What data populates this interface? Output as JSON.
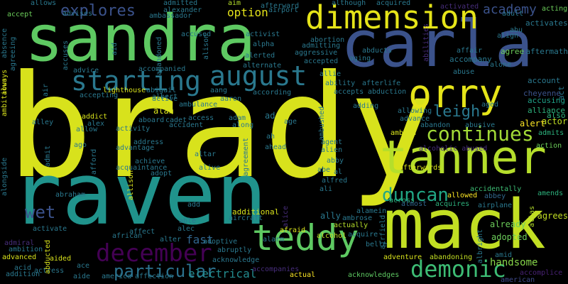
{
  "words": [
    {
      "text": "brady",
      "color": "#d8e21c"
    },
    {
      "text": "raven",
      "color": "#20938c"
    },
    {
      "text": "sandra",
      "color": "#5ec962"
    },
    {
      "text": "carla",
      "color": "#3b528b"
    },
    {
      "text": "mack",
      "color": "#c2df23"
    },
    {
      "text": "tanner",
      "color": "#b5de2b"
    },
    {
      "text": "dimension",
      "color": "#e5e419"
    },
    {
      "text": "orry",
      "color": "#e5e419"
    },
    {
      "text": "teddy",
      "color": "#5ec962"
    },
    {
      "text": "august",
      "color": "#2a788e"
    },
    {
      "text": "starting",
      "color": "#2a788e"
    },
    {
      "text": "continues",
      "color": "#a2da37"
    },
    {
      "text": "demonic",
      "color": "#3dbc74"
    },
    {
      "text": "december",
      "color": "#440154"
    },
    {
      "text": "duncan",
      "color": "#21a685"
    },
    {
      "text": "particular",
      "color": "#2c728e"
    },
    {
      "text": "explores",
      "color": "#3b528b"
    },
    {
      "text": "leigh",
      "color": "#2a788e"
    },
    {
      "text": "wet",
      "color": "#3b528b"
    },
    {
      "text": "academy",
      "color": "#3b528b"
    },
    {
      "text": "option",
      "color": "#e5e419"
    },
    {
      "text": "electrical",
      "color": "#238a8d"
    },
    {
      "text": "handsome",
      "color": "#86d549"
    },
    {
      "text": "fast",
      "color": "#31668e"
    },
    {
      "text": "afterwards",
      "color": "#d8e21c"
    },
    {
      "text": "ambush",
      "color": "#d8e21c"
    },
    {
      "text": "accidentally",
      "color": "#3dbc74"
    },
    {
      "text": "across",
      "color": "#2db27d"
    },
    {
      "text": "alcohol",
      "color": "#c2df23"
    },
    {
      "text": "allowed",
      "color": "#fde725"
    },
    {
      "text": "almost",
      "color": "#31668e"
    },
    {
      "text": "acquires",
      "color": "#2db27d"
    },
    {
      "text": "airplane",
      "color": "#2a788e"
    },
    {
      "text": "agrees",
      "color": "#c2df23"
    },
    {
      "text": "already",
      "color": "#6ccd5a"
    },
    {
      "text": "adopted",
      "color": "#6ccd5a"
    },
    {
      "text": "adventure",
      "color": "#d8e21c"
    },
    {
      "text": "abandoning",
      "color": "#c2df23"
    },
    {
      "text": "acknowledges",
      "color": "#5ec962"
    },
    {
      "text": "actual",
      "color": "#fde725"
    },
    {
      "text": "actually",
      "color": "#b5de2b"
    },
    {
      "text": "accompanies",
      "color": "#472d7b"
    },
    {
      "text": "accomplice",
      "color": "#482173"
    },
    {
      "text": "american",
      "color": "#3e4989"
    },
    {
      "text": "abrahm",
      "color": "#000000"
    },
    {
      "text": "actor",
      "color": "#c2df23"
    },
    {
      "text": "alert",
      "color": "#fde725"
    },
    {
      "text": "admits",
      "color": "#2db27d"
    },
    {
      "text": "action",
      "color": "#6ccd5a"
    },
    {
      "text": "abbey",
      "color": "#31688e"
    },
    {
      "text": "amends",
      "color": "#2db27d"
    },
    {
      "text": "alias",
      "color": "#b5de2b"
    },
    {
      "text": "alliance",
      "color": "#2db27d"
    },
    {
      "text": "also",
      "color": "#2db27d"
    },
    {
      "text": "accusing",
      "color": "#1fa188"
    },
    {
      "text": "cheyenne",
      "color": "#3b528b"
    },
    {
      "text": "act",
      "color": "#2a788e"
    },
    {
      "text": "account",
      "color": "#2a788e"
    },
    {
      "text": "abuse",
      "color": "#2a788e"
    },
    {
      "text": "alone",
      "color": "#2a788e"
    },
    {
      "text": "accompany",
      "color": "#2a788e"
    },
    {
      "text": "affair",
      "color": "#2a788e"
    },
    {
      "text": "agree",
      "color": "#6ccd5a"
    },
    {
      "text": "aftermath",
      "color": "#2a788e"
    },
    {
      "text": "align",
      "color": "#2a788e"
    },
    {
      "text": "abu",
      "color": "#2a788e"
    },
    {
      "text": "activates",
      "color": "#2a788e"
    },
    {
      "text": "adult",
      "color": "#2a788e"
    },
    {
      "text": "acting",
      "color": "#6ccd5a"
    },
    {
      "text": "activated",
      "color": "#472d7b"
    },
    {
      "text": "acquired",
      "color": "#2a788e"
    },
    {
      "text": "although",
      "color": "#2a788e"
    },
    {
      "text": "aim",
      "color": "#b5de2b"
    },
    {
      "text": "afterward",
      "color": "#2a788e"
    },
    {
      "text": "airport",
      "color": "#2a788e"
    },
    {
      "text": "admitted",
      "color": "#2a788e"
    },
    {
      "text": "ambassador",
      "color": "#2a788e"
    },
    {
      "text": "alexander",
      "color": "#2a788e"
    },
    {
      "text": "advises",
      "color": "#2a788e"
    },
    {
      "text": "allows",
      "color": "#2a788e"
    },
    {
      "text": "accept",
      "color": "#6ccd5a"
    },
    {
      "text": "activist",
      "color": "#2a788e"
    },
    {
      "text": "alpha",
      "color": "#2a788e"
    },
    {
      "text": "alerted",
      "color": "#2a788e"
    },
    {
      "text": "alternate",
      "color": "#2a788e"
    },
    {
      "text": "accused",
      "color": "#2a788e"
    },
    {
      "text": "abortion",
      "color": "#2a788e"
    },
    {
      "text": "admitting",
      "color": "#2a788e"
    },
    {
      "text": "aggressive",
      "color": "#2a788e"
    },
    {
      "text": "accepted",
      "color": "#2a788e"
    },
    {
      "text": "aging",
      "color": "#2a788e"
    },
    {
      "text": "abducts",
      "color": "#2a788e"
    },
    {
      "text": "allie",
      "color": "#2a788e"
    },
    {
      "text": "ability",
      "color": "#2a788e"
    },
    {
      "text": "afterlife",
      "color": "#2a788e"
    },
    {
      "text": "accepts",
      "color": "#2a788e"
    },
    {
      "text": "abduction",
      "color": "#2a788e"
    },
    {
      "text": "adding",
      "color": "#2a788e"
    },
    {
      "text": "aged",
      "color": "#2a788e"
    },
    {
      "text": "allowing",
      "color": "#2a788e"
    },
    {
      "text": "advance",
      "color": "#2a788e"
    },
    {
      "text": "abandon",
      "color": "#2a788e"
    },
    {
      "text": "abusive",
      "color": "#2a788e"
    },
    {
      "text": "alcoholic abused",
      "color": "#472d7b"
    },
    {
      "text": "advice",
      "color": "#2a788e"
    },
    {
      "text": "accompanied",
      "color": "#2a788e"
    },
    {
      "text": "abigail",
      "color": "#2a788e"
    },
    {
      "text": "accepting",
      "color": "#2a788e"
    },
    {
      "text": "lighthouse",
      "color": "#d8e21c"
    },
    {
      "text": "albert",
      "color": "#2a788e"
    },
    {
      "text": "active",
      "color": "#2a788e"
    },
    {
      "text": "ambulance",
      "color": "#2a788e"
    },
    {
      "text": "aang",
      "color": "#2a788e"
    },
    {
      "text": "according",
      "color": "#2a788e"
    },
    {
      "text": "aaron",
      "color": "#2a788e"
    },
    {
      "text": "alan",
      "color": "#d8e21c"
    },
    {
      "text": "access",
      "color": "#2a788e"
    },
    {
      "text": "adam",
      "color": "#2a788e"
    },
    {
      "text": "addict",
      "color": "#d8e21c"
    },
    {
      "text": "aboard",
      "color": "#2a788e"
    },
    {
      "text": "cadet",
      "color": "#2a788e"
    },
    {
      "text": "accident",
      "color": "#2a788e"
    },
    {
      "text": "alex",
      "color": "#2a788e"
    },
    {
      "text": "allow",
      "color": "#2a788e"
    },
    {
      "text": "alley",
      "color": "#2a788e"
    },
    {
      "text": "activity",
      "color": "#2a788e"
    },
    {
      "text": "along",
      "color": "#2a788e"
    },
    {
      "text": "age",
      "color": "#2a788e"
    },
    {
      "text": "ad",
      "color": "#2a788e"
    },
    {
      "text": "ah",
      "color": "#2a788e"
    },
    {
      "text": "ahead",
      "color": "#2a788e"
    },
    {
      "text": "agent",
      "color": "#2a788e"
    },
    {
      "text": "alien",
      "color": "#2a788e"
    },
    {
      "text": "address",
      "color": "#2a788e"
    },
    {
      "text": "advantage",
      "color": "#2a788e"
    },
    {
      "text": "altar",
      "color": "#2a788e"
    },
    {
      "text": "alive",
      "color": "#2a788e"
    },
    {
      "text": "ago",
      "color": "#2a788e"
    },
    {
      "text": "abby",
      "color": "#2a788e"
    },
    {
      "text": "achieve",
      "color": "#2a788e"
    },
    {
      "text": "acquaintance",
      "color": "#2a788e"
    },
    {
      "text": "adopt",
      "color": "#2a788e"
    },
    {
      "text": "abe",
      "color": "#2a788e"
    },
    {
      "text": "al",
      "color": "#2a788e"
    },
    {
      "text": "alfred",
      "color": "#2a788e"
    },
    {
      "text": "ali",
      "color": "#2a788e"
    },
    {
      "text": "abraham",
      "color": "#2a788e"
    },
    {
      "text": "add",
      "color": "#2a788e"
    },
    {
      "text": "additional",
      "color": "#d8e21c"
    },
    {
      "text": "aircraft",
      "color": "#2a788e"
    },
    {
      "text": "ally",
      "color": "#2a788e"
    },
    {
      "text": "ambrose",
      "color": "#2a788e"
    },
    {
      "text": "alamein",
      "color": "#2a788e"
    },
    {
      "text": "acquire",
      "color": "#2a788e"
    },
    {
      "text": "belle",
      "color": "#2a788e"
    },
    {
      "text": "able",
      "color": "#2a788e"
    },
    {
      "text": "alec",
      "color": "#2a788e"
    },
    {
      "text": "activate",
      "color": "#2a788e"
    },
    {
      "text": "african",
      "color": "#2a788e"
    },
    {
      "text": "affect",
      "color": "#2a788e"
    },
    {
      "text": "alter",
      "color": "#2a788e"
    },
    {
      "text": "adoptive",
      "color": "#2a788e"
    },
    {
      "text": "alarm",
      "color": "#2a788e"
    },
    {
      "text": "afraid",
      "color": "#d8e21c"
    },
    {
      "text": "abruptly",
      "color": "#2a788e"
    },
    {
      "text": "acknowledge",
      "color": "#2a788e"
    },
    {
      "text": "admiral",
      "color": "#472d7b"
    },
    {
      "text": "ambition",
      "color": "#2a788e"
    },
    {
      "text": "advanced",
      "color": "#d8e21c"
    },
    {
      "text": "aided",
      "color": "#d8e21c"
    },
    {
      "text": "ace",
      "color": "#2a788e"
    },
    {
      "text": "acid",
      "color": "#2a788e"
    },
    {
      "text": "actress",
      "color": "#2a788e"
    },
    {
      "text": "addition",
      "color": "#2a788e"
    },
    {
      "text": "aide",
      "color": "#2a788e"
    },
    {
      "text": "america",
      "color": "#2a788e"
    },
    {
      "text": "affection",
      "color": "#2a788e"
    },
    {
      "text": "amid",
      "color": "#2a788e"
    },
    {
      "text": "ambitious",
      "color": "#d8e21c"
    },
    {
      "text": "always",
      "color": "#d8e21c"
    },
    {
      "text": "agreeing",
      "color": "#2a788e"
    },
    {
      "text": "absence",
      "color": "#2a788e"
    },
    {
      "text": "accuses",
      "color": "#2a788e"
    },
    {
      "text": "aid",
      "color": "#2a788e"
    },
    {
      "text": "abandoned",
      "color": "#2a788e"
    },
    {
      "text": "alison",
      "color": "#2a788e"
    },
    {
      "text": "ambushed",
      "color": "#2a788e"
    },
    {
      "text": "air",
      "color": "#2a788e"
    },
    {
      "text": "admit",
      "color": "#2a788e"
    },
    {
      "text": "afford",
      "color": "#2a788e"
    },
    {
      "text": "alongside",
      "color": "#2a788e"
    },
    {
      "text": "allison",
      "color": "#d8e21c"
    },
    {
      "text": "agreement",
      "color": "#2a788e"
    },
    {
      "text": "alice",
      "color": "#472d7b"
    },
    {
      "text": "airfield",
      "color": "#2a788e"
    },
    {
      "text": "abducted",
      "color": "#d8e21c"
    },
    {
      "text": "albright",
      "color": "#2a788e"
    },
    {
      "text": "abilities",
      "color": "#472d7b"
    }
  ]
}
